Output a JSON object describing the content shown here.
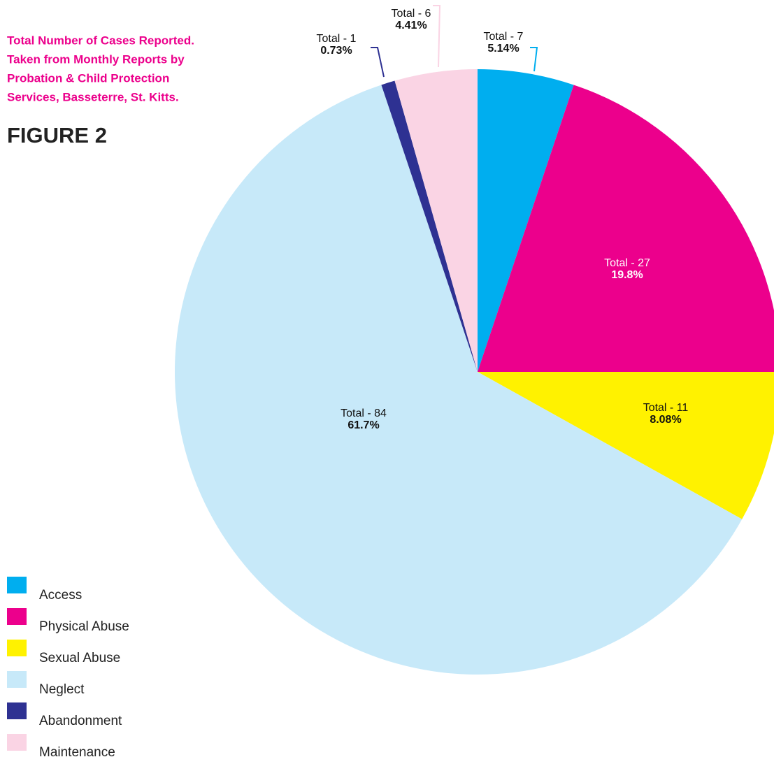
{
  "chart_data": {
    "type": "pie",
    "title": [
      "Total Number of Cases Reported.",
      "Taken from Monthly Reports by",
      "Probation & Child Protection",
      "Services, Basseterre, St. Kitts."
    ],
    "subtitle": "FIGURE 2",
    "categories": [
      "Access",
      "Physical Abuse",
      "Sexual Abuse",
      "Neglect",
      "Abandonment",
      "Maintenance"
    ],
    "values": [
      7,
      27,
      11,
      84,
      1,
      6
    ],
    "value_labels": [
      "Total - 7",
      "Total - 27",
      "Total - 11",
      "Total - 84",
      "Total - 1",
      "Total - 6"
    ],
    "percentages": [
      5.14,
      19.8,
      8.08,
      61.7,
      0.73,
      4.41
    ],
    "percentage_labels": [
      "5.14%",
      "19.8%",
      "8.08%",
      "61.7%",
      "0.73%",
      "4.41%"
    ],
    "colors": [
      "#00aeef",
      "#ec008c",
      "#fff200",
      "#c7e9f9",
      "#2e3192",
      "#fad4e4"
    ],
    "legend": "bottom-left"
  }
}
